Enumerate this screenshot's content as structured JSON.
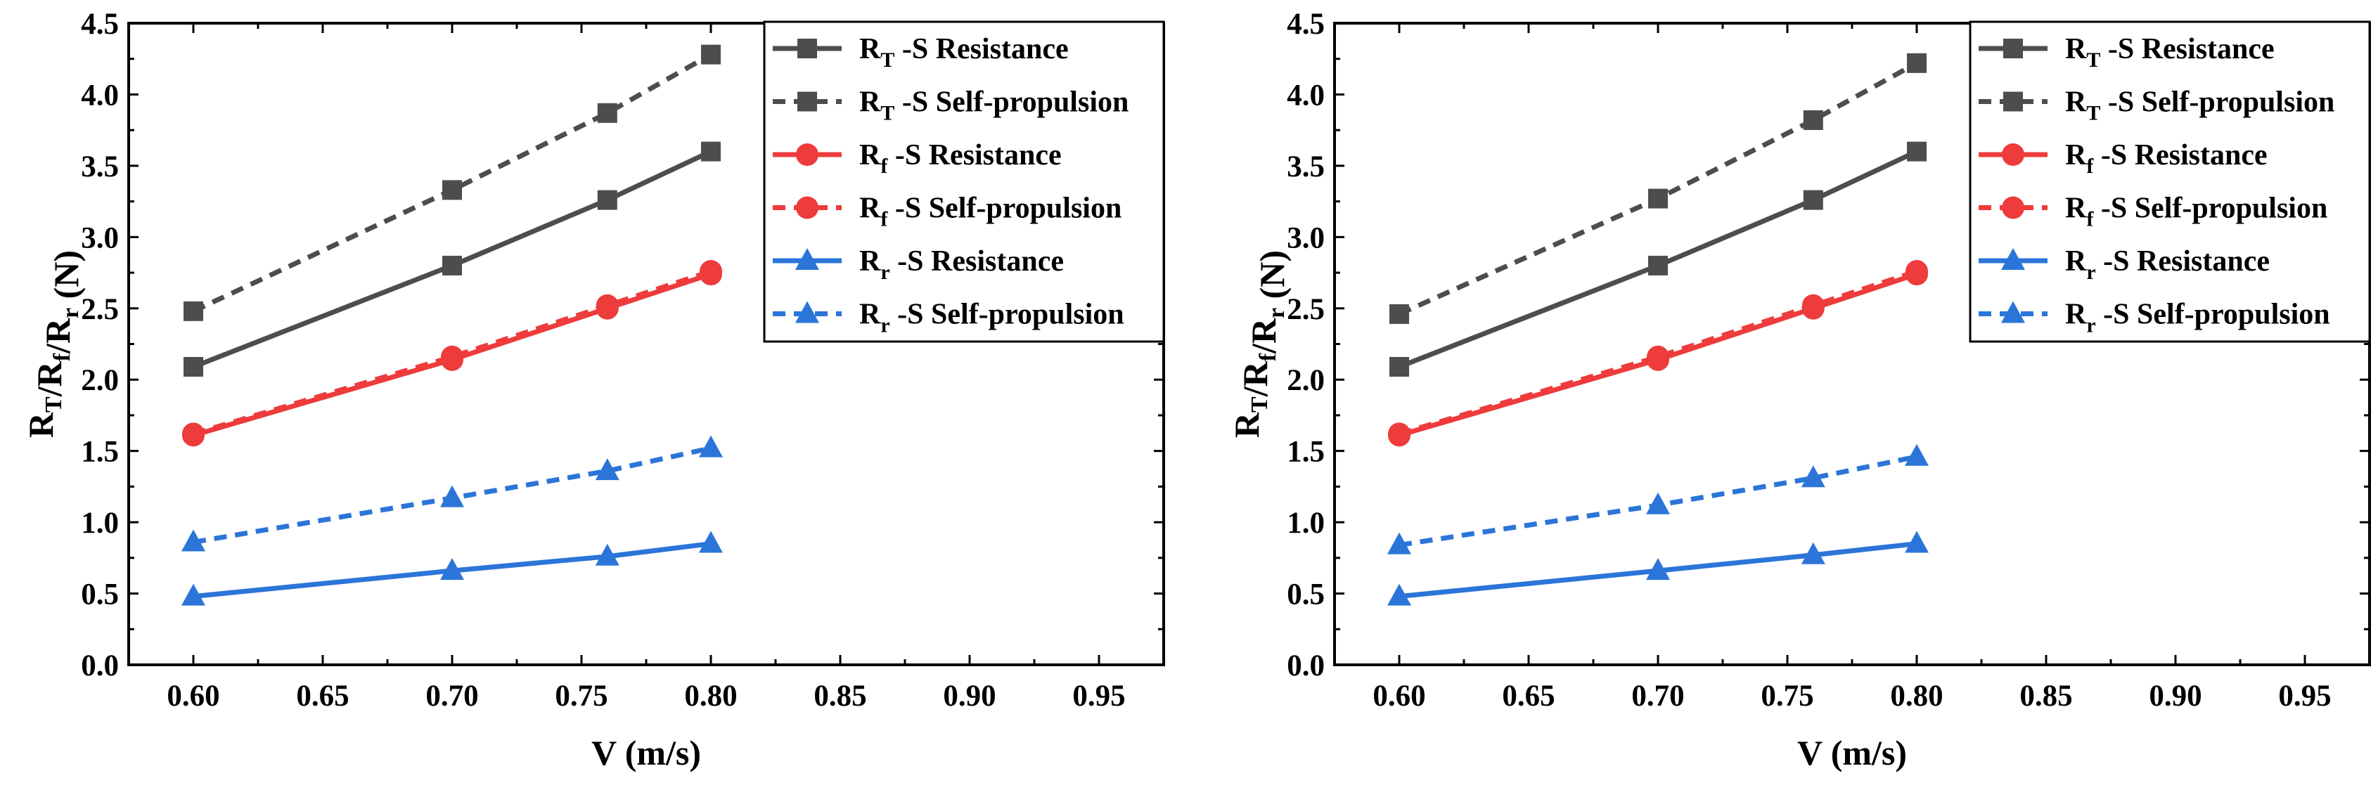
{
  "chart_data": [
    {
      "type": "line",
      "title": "",
      "xlabel": "V (m/s)",
      "ylabel": {
        "base": "R",
        "parts": [
          "T",
          "f",
          "r"
        ],
        "unit": " (N)"
      },
      "xlim": [
        0.575,
        0.975
      ],
      "ylim": [
        0,
        4.5
      ],
      "x_ticks": [
        "0.60",
        "0.65",
        "0.70",
        "0.75",
        "0.80",
        "0.85",
        "0.90",
        "0.95"
      ],
      "y_ticks": [
        "0.0",
        "0.5",
        "1.0",
        "1.5",
        "2.0",
        "2.5",
        "3.0",
        "3.5",
        "4.0",
        "4.5"
      ],
      "x": [
        0.6,
        0.7,
        0.76,
        0.8
      ],
      "legend_position": "top-right",
      "series": [
        {
          "name": "RT -S Resistance",
          "sub": "T",
          "text": " -S Resistance",
          "color": "#4d4d4d",
          "dash": false,
          "marker": "square",
          "values": [
            2.09,
            2.8,
            3.26,
            3.6
          ]
        },
        {
          "name": "RT -S Self-propulsion",
          "sub": "T",
          "text": " -S Self-propulsion",
          "color": "#4d4d4d",
          "dash": true,
          "marker": "square",
          "values": [
            2.48,
            3.33,
            3.87,
            4.28
          ]
        },
        {
          "name": "Rf -S Resistance",
          "sub": "f",
          "text": " -S Resistance",
          "color": "#ee3b3b",
          "dash": false,
          "marker": "circle",
          "values": [
            1.61,
            2.14,
            2.5,
            2.74
          ]
        },
        {
          "name": "Rf -S Self-propulsion",
          "sub": "f",
          "text": " -S Self-propulsion",
          "color": "#ee3b3b",
          "dash": true,
          "marker": "circle",
          "values": [
            1.62,
            2.16,
            2.52,
            2.76
          ]
        },
        {
          "name": "Rr -S Resistance",
          "sub": "r",
          "text": " -S Resistance",
          "color": "#2b75d9",
          "dash": false,
          "marker": "triangle",
          "values": [
            0.48,
            0.66,
            0.76,
            0.85
          ]
        },
        {
          "name": "Rr -S Self-propulsion",
          "sub": "r",
          "text": " -S Self-propulsion",
          "color": "#2b75d9",
          "dash": true,
          "marker": "triangle",
          "values": [
            0.86,
            1.17,
            1.36,
            1.52
          ]
        }
      ]
    },
    {
      "type": "line",
      "title": "",
      "xlabel": "V (m/s)",
      "ylabel": {
        "base": "R",
        "parts": [
          "T",
          "f",
          "r"
        ],
        "unit": " (N)"
      },
      "xlim": [
        0.575,
        0.975
      ],
      "ylim": [
        0,
        4.5
      ],
      "x_ticks": [
        "0.60",
        "0.65",
        "0.70",
        "0.75",
        "0.80",
        "0.85",
        "0.90",
        "0.95"
      ],
      "y_ticks": [
        "0.0",
        "0.5",
        "1.0",
        "1.5",
        "2.0",
        "2.5",
        "3.0",
        "3.5",
        "4.0",
        "4.5"
      ],
      "x": [
        0.6,
        0.7,
        0.76,
        0.8
      ],
      "legend_position": "top-right",
      "series": [
        {
          "name": "RT -S Resistance",
          "sub": "T",
          "text": " -S Resistance",
          "color": "#4d4d4d",
          "dash": false,
          "marker": "square",
          "values": [
            2.09,
            2.8,
            3.26,
            3.6
          ]
        },
        {
          "name": "RT -S Self-propulsion",
          "sub": "T",
          "text": " -S Self-propulsion",
          "color": "#4d4d4d",
          "dash": true,
          "marker": "square",
          "values": [
            2.46,
            3.27,
            3.82,
            4.22
          ]
        },
        {
          "name": "Rf -S Resistance",
          "sub": "f",
          "text": " -S Resistance",
          "color": "#ee3b3b",
          "dash": false,
          "marker": "circle",
          "values": [
            1.61,
            2.14,
            2.5,
            2.74
          ]
        },
        {
          "name": "Rf -S Self-propulsion",
          "sub": "f",
          "text": " -S Self-propulsion",
          "color": "#ee3b3b",
          "dash": true,
          "marker": "circle",
          "values": [
            1.62,
            2.16,
            2.52,
            2.76
          ]
        },
        {
          "name": "Rr -S Resistance",
          "sub": "r",
          "text": " -S Resistance",
          "color": "#2b75d9",
          "dash": false,
          "marker": "triangle",
          "values": [
            0.48,
            0.66,
            0.77,
            0.85
          ]
        },
        {
          "name": "Rr -S Self-propulsion",
          "sub": "r",
          "text": " -S Self-propulsion",
          "color": "#2b75d9",
          "dash": true,
          "marker": "triangle",
          "values": [
            0.84,
            1.12,
            1.31,
            1.46
          ]
        }
      ]
    }
  ]
}
